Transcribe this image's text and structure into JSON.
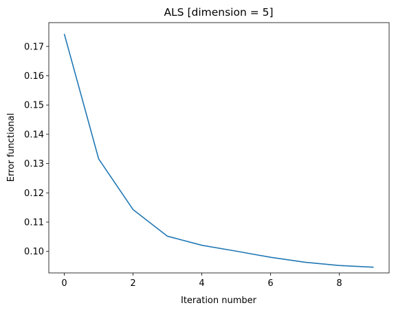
{
  "chart_data": {
    "type": "line",
    "title": "ALS [dimension = 5]",
    "xlabel": "Iteration number",
    "ylabel": "Error functional",
    "x": [
      0,
      1,
      2,
      3,
      4,
      5,
      6,
      7,
      8,
      9
    ],
    "series": [
      {
        "values": [
          0.1743,
          0.1316,
          0.1143,
          0.1052,
          0.1021,
          0.1001,
          0.098,
          0.0963,
          0.0952,
          0.0946
        ],
        "color": "#1f77b4"
      }
    ],
    "xticks": [
      "0",
      "2",
      "4",
      "6",
      "8"
    ],
    "yticks": [
      "0.10",
      "0.11",
      "0.12",
      "0.13",
      "0.14",
      "0.15",
      "0.16",
      "0.17"
    ],
    "xlim": [
      -0.45,
      9.45
    ],
    "ylim": [
      0.09266,
      0.17814
    ],
    "grid": false,
    "legend": "none"
  }
}
